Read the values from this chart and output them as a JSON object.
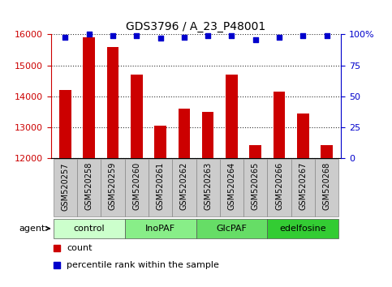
{
  "title": "GDS3796 / A_23_P48001",
  "samples": [
    "GSM520257",
    "GSM520258",
    "GSM520259",
    "GSM520260",
    "GSM520261",
    "GSM520262",
    "GSM520263",
    "GSM520264",
    "GSM520265",
    "GSM520266",
    "GSM520267",
    "GSM520268"
  ],
  "counts": [
    14200,
    15900,
    15600,
    14700,
    13050,
    13600,
    13500,
    14700,
    12400,
    14150,
    13450,
    12400
  ],
  "percentile_ranks": [
    98,
    100,
    99,
    99,
    97,
    98,
    99,
    99,
    96,
    98,
    99,
    99
  ],
  "ylim": [
    12000,
    16000
  ],
  "yticks": [
    12000,
    13000,
    14000,
    15000,
    16000
  ],
  "y2lim": [
    0,
    100
  ],
  "y2ticks": [
    0,
    25,
    50,
    75,
    100
  ],
  "bar_color": "#cc0000",
  "dot_color": "#0000cc",
  "groups": [
    {
      "label": "control",
      "start": 0,
      "end": 3,
      "color": "#ccffcc"
    },
    {
      "label": "InoPAF",
      "start": 3,
      "end": 6,
      "color": "#88ee88"
    },
    {
      "label": "GlcPAF",
      "start": 6,
      "end": 9,
      "color": "#66dd66"
    },
    {
      "label": "edelfosine",
      "start": 9,
      "end": 12,
      "color": "#33cc33"
    }
  ],
  "agent_label": "agent",
  "legend_items": [
    {
      "color": "#cc0000",
      "label": "count"
    },
    {
      "color": "#0000cc",
      "label": "percentile rank within the sample"
    }
  ],
  "grid_color": "#000000",
  "background_color": "#ffffff",
  "bar_width": 0.5,
  "y_label_color": "#cc0000",
  "y2_label_color": "#0000cc",
  "tick_box_color": "#cccccc",
  "tick_box_border": "#888888"
}
